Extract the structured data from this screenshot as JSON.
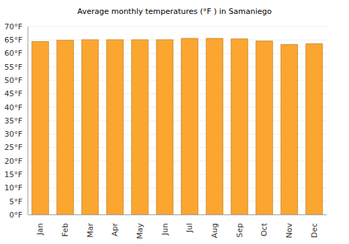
{
  "chart_data": {
    "type": "bar",
    "title": "Average monthly temperatures (°F ) in Samaniego",
    "categories": [
      "Jan",
      "Feb",
      "Mar",
      "Apr",
      "May",
      "Jun",
      "Jul",
      "Aug",
      "Sep",
      "Oct",
      "Nov",
      "Dec"
    ],
    "values": [
      64.4,
      64.9,
      65.1,
      65.1,
      65.1,
      65.1,
      65.6,
      65.6,
      65.4,
      64.6,
      63.3,
      63.6
    ],
    "color": "#fba631",
    "ylim": [
      0,
      70
    ],
    "yticks": [
      {
        "value": 0,
        "label": "0°F"
      },
      {
        "value": 5,
        "label": "5°F"
      },
      {
        "value": 10,
        "label": "10°F"
      },
      {
        "value": 15,
        "label": "15°F"
      },
      {
        "value": 20,
        "label": "20°F"
      },
      {
        "value": 25,
        "label": "25°F"
      },
      {
        "value": 30,
        "label": "30°F"
      },
      {
        "value": 35,
        "label": "35°F"
      },
      {
        "value": 40,
        "label": "40°F"
      },
      {
        "value": 45,
        "label": "45°F"
      },
      {
        "value": 50,
        "label": "50°F"
      },
      {
        "value": 55,
        "label": "55°F"
      },
      {
        "value": 60,
        "label": "60°F"
      },
      {
        "value": 65,
        "label": "65°F"
      },
      {
        "value": 70,
        "label": "70°F"
      }
    ],
    "grid": true
  }
}
